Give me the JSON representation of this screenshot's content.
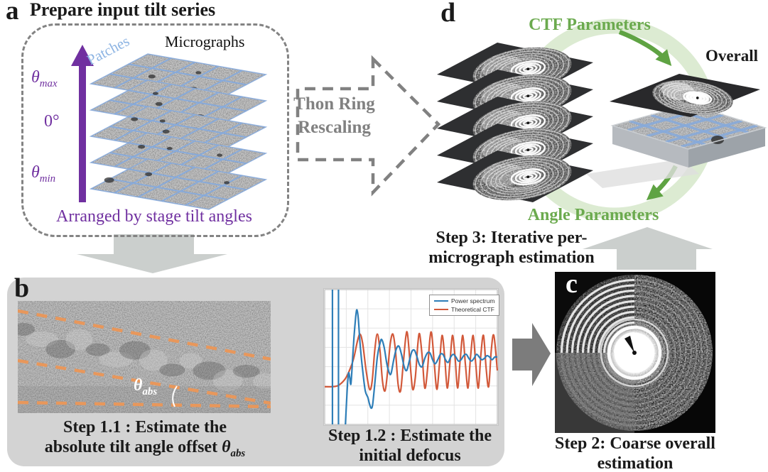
{
  "figure": {
    "panel_a": {
      "label": "a",
      "title": "Prepare input tilt series",
      "theta_symbol": "θ",
      "theta_max_sub": "max",
      "zero_label": "0°",
      "theta_min_sub": "min",
      "patches_label": "Patches",
      "micrographs_label": "Micrographs",
      "caption": "Arranged by stage tilt angles"
    },
    "thon_arrow": {
      "line1": "Thon Ring",
      "line2": "Rescaling"
    },
    "panel_b": {
      "label": "b",
      "theta_abs_symbol": "θ",
      "theta_abs_sub": "abs",
      "step11_line1": "Step 1.1 : Estimate the",
      "step11_line2_prefix": "absolute tilt angle offset ",
      "step12_line1": "Step 1.2 : Estimate the",
      "step12_line2": "initial defocus"
    },
    "panel_c": {
      "label": "c",
      "step2_line1": "Step 2: Coarse overall",
      "step2_line2": "estimation"
    },
    "panel_d": {
      "label": "d",
      "ctf_label": "CTF Parameters",
      "angle_label": "Angle Parameters",
      "overall_label": "Overall",
      "step3_line1": "Step 3: Iterative per-",
      "step3_line2": "micrograph estimation"
    }
  },
  "colors": {
    "purple": "#7030A0",
    "patch_blue": "#8DB4E3",
    "grid_blue": "#86AADC",
    "green_text": "#6BAA4E",
    "green_arrow": "#5FA343",
    "green_ring": "#DCEBD2",
    "gray_dash": "#818181",
    "panel_gray": "#D3D3D3",
    "flow_arrow_light": "#CBCFCD",
    "flow_arrow_dark": "#7C7C7C",
    "orange_dash": "#E8975B"
  },
  "chart_data": {
    "type": "line",
    "title": "",
    "xlabel": "",
    "ylabel": "",
    "x_range": [
      0,
      100
    ],
    "y_range": [
      0,
      100
    ],
    "grid": true,
    "legend_position": "top-right",
    "series": [
      {
        "name": "Power spectrum",
        "color": "#2E7EB8",
        "vertical_asymptotes_x": [
          4.5,
          8
        ],
        "points": [
          [
            12,
            0
          ],
          [
            13,
            25
          ],
          [
            13.8,
            38
          ],
          [
            14.5,
            35
          ],
          [
            15.2,
            30
          ],
          [
            16,
            45
          ],
          [
            17,
            65
          ],
          [
            18,
            80
          ],
          [
            18.7,
            85
          ],
          [
            19.5,
            78
          ],
          [
            20.5,
            60
          ],
          [
            22,
            40
          ],
          [
            23.5,
            25
          ],
          [
            25,
            20
          ],
          [
            26,
            15
          ],
          [
            27,
            12
          ],
          [
            27.8,
            15
          ],
          [
            29,
            30
          ],
          [
            30.5,
            50
          ],
          [
            32,
            60
          ],
          [
            33,
            63
          ],
          [
            34.5,
            57
          ],
          [
            36,
            45
          ],
          [
            37.5,
            38
          ],
          [
            38.5,
            38
          ],
          [
            40,
            48
          ],
          [
            41.5,
            56
          ],
          [
            43,
            58
          ],
          [
            44.5,
            52
          ],
          [
            46,
            43
          ],
          [
            47.5,
            40
          ],
          [
            49,
            47
          ],
          [
            50.5,
            54
          ],
          [
            52,
            55
          ],
          [
            53.5,
            50
          ],
          [
            55,
            44
          ],
          [
            56.5,
            43
          ],
          [
            58,
            49
          ],
          [
            59.5,
            53
          ],
          [
            61,
            53
          ],
          [
            62.5,
            48
          ],
          [
            64,
            45
          ],
          [
            65.5,
            48
          ],
          [
            67,
            52
          ],
          [
            68.5,
            52
          ],
          [
            70,
            48
          ],
          [
            71.5,
            46
          ],
          [
            73,
            50
          ],
          [
            74.5,
            52
          ],
          [
            76,
            50
          ],
          [
            77.5,
            47
          ],
          [
            79,
            48
          ],
          [
            80.5,
            51
          ],
          [
            82,
            52
          ],
          [
            83.5,
            49
          ],
          [
            85,
            47
          ],
          [
            86.5,
            49
          ],
          [
            88,
            52
          ],
          [
            89.5,
            50
          ],
          [
            91,
            48
          ],
          [
            92.5,
            49
          ],
          [
            94,
            51
          ],
          [
            95.5,
            50
          ],
          [
            97,
            48
          ],
          [
            98.5,
            50
          ],
          [
            100,
            50
          ]
        ]
      },
      {
        "name": "Theoretical CTF",
        "color": "#D2593A",
        "points": [
          [
            0,
            28
          ],
          [
            4,
            28
          ],
          [
            8,
            29
          ],
          [
            12,
            34
          ],
          [
            15,
            42
          ],
          [
            17,
            50
          ],
          [
            19,
            62
          ],
          [
            20.5,
            67
          ],
          [
            22,
            60
          ],
          [
            24,
            40
          ],
          [
            26,
            26
          ],
          [
            27.5,
            32
          ],
          [
            29,
            55
          ],
          [
            30.5,
            67
          ],
          [
            32,
            55
          ],
          [
            33.5,
            32
          ],
          [
            35,
            25
          ],
          [
            36.5,
            40
          ],
          [
            38,
            60
          ],
          [
            39.5,
            67
          ],
          [
            41,
            55
          ],
          [
            42.5,
            30
          ],
          [
            44,
            25
          ],
          [
            45.5,
            45
          ],
          [
            47,
            65
          ],
          [
            48,
            67
          ],
          [
            49.5,
            45
          ],
          [
            51,
            26
          ],
          [
            52.5,
            35
          ],
          [
            54,
            60
          ],
          [
            55,
            67
          ],
          [
            56.5,
            50
          ],
          [
            58,
            27
          ],
          [
            59.5,
            40
          ],
          [
            61,
            64
          ],
          [
            62,
            67
          ],
          [
            63.5,
            45
          ],
          [
            65,
            26
          ],
          [
            66.5,
            45
          ],
          [
            68,
            66
          ],
          [
            69.5,
            50
          ],
          [
            71,
            27
          ],
          [
            72.5,
            45
          ],
          [
            74,
            66
          ],
          [
            75.5,
            50
          ],
          [
            77,
            27
          ],
          [
            78.5,
            48
          ],
          [
            80,
            66
          ],
          [
            81.5,
            45
          ],
          [
            83,
            27
          ],
          [
            84.5,
            50
          ],
          [
            86,
            66
          ],
          [
            87.5,
            45
          ],
          [
            89,
            27
          ],
          [
            90.5,
            52
          ],
          [
            92,
            66
          ],
          [
            93.5,
            42
          ],
          [
            95,
            28
          ],
          [
            96.5,
            55
          ],
          [
            98,
            66
          ],
          [
            100,
            40
          ]
        ]
      }
    ]
  }
}
